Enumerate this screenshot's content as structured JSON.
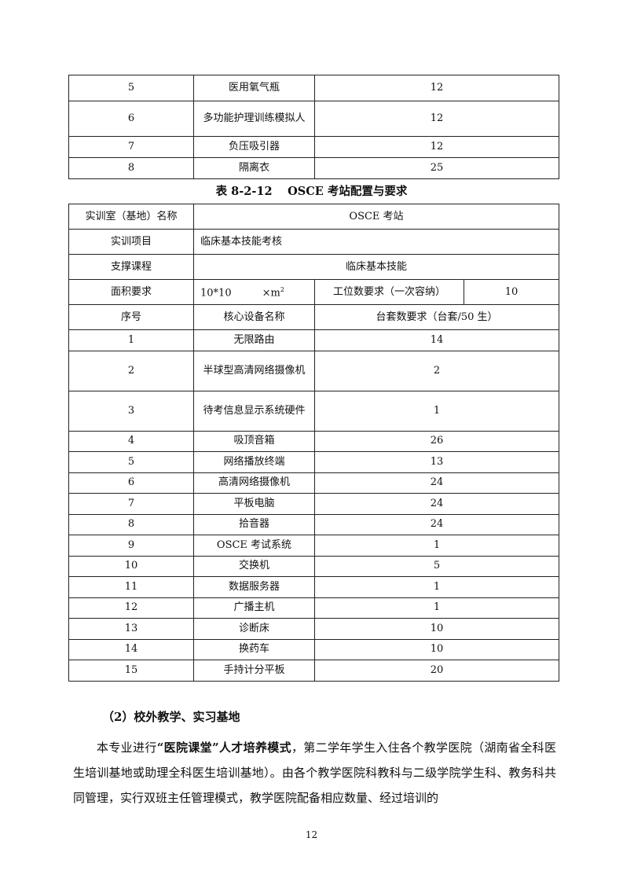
{
  "table_top": {
    "rows": [
      {
        "no": "5",
        "name": "医用氧气瓶",
        "qty": "12"
      },
      {
        "no": "6",
        "name": "多功能护理训练模拟人",
        "qty": "12"
      },
      {
        "no": "7",
        "name": "负压吸引器",
        "qty": "12"
      },
      {
        "no": "8",
        "name": "隔离衣",
        "qty": "25"
      }
    ]
  },
  "caption": "表 8-2-12　 OSCE 考站配置与要求",
  "table_main": {
    "room_label": "实训室（基地）名称",
    "room_value": "OSCE 考站",
    "project_label": "实训项目",
    "project_value": "临床基本技能考核",
    "course_label": "支撑课程",
    "course_value": "临床基本技能",
    "area_label": "面积要求",
    "area_value": "10*10　　　×m",
    "area_sup": "2",
    "station_label": "工位数要求（一次容纳）",
    "station_value": "10",
    "col_no": "序号",
    "col_name": "核心设备名称",
    "col_qty": "台套数要求（台套/50 生）",
    "rows": [
      {
        "no": "1",
        "name": "无限路由",
        "qty": "14"
      },
      {
        "no": "2",
        "name": "半球型高清网络摄像机",
        "qty": "2"
      },
      {
        "no": "3",
        "name": "待考信息显示系统硬件",
        "qty": "1"
      },
      {
        "no": "4",
        "name": "吸顶音箱",
        "qty": "26"
      },
      {
        "no": "5",
        "name": "网络播放终端",
        "qty": "13"
      },
      {
        "no": "6",
        "name": "高清网络摄像机",
        "qty": "24"
      },
      {
        "no": "7",
        "name": "平板电脑",
        "qty": "24"
      },
      {
        "no": "8",
        "name": "拾音器",
        "qty": "24"
      },
      {
        "no": "9",
        "name": "OSCE 考试系统",
        "qty": "1"
      },
      {
        "no": "10",
        "name": "交换机",
        "qty": "5"
      },
      {
        "no": "11",
        "name": "数据服务器",
        "qty": "1"
      },
      {
        "no": "12",
        "name": "广播主机",
        "qty": "1"
      },
      {
        "no": "13",
        "name": "诊断床",
        "qty": "10"
      },
      {
        "no": "14",
        "name": "换药车",
        "qty": "10"
      },
      {
        "no": "15",
        "name": "手持计分平板",
        "qty": "20"
      }
    ]
  },
  "section_heading": "（2）校外教学、实习基地",
  "paragraph": {
    "part1": "本专业进行",
    "bold": "“医院课堂”人才培养模式",
    "part2": "，第二学年学生入住各个教学医院（湖南省全科医生培训基地或助理全科医生培训基地）。由各个教学医院科教科与二级学院学生科、教务科共同管理，实行双班主任管理模式，教学医院配备相应数量、经过培训的"
  },
  "page_number": "12"
}
